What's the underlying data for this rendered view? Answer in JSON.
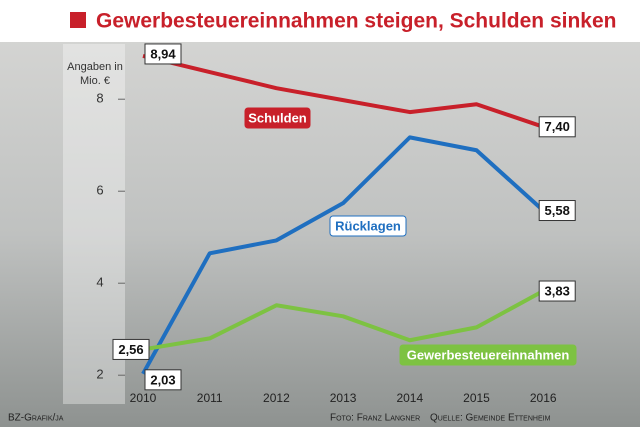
{
  "chart_data": {
    "type": "line",
    "title": "Gewerbesteuereinnahmen steigen, Schulden sinken",
    "ylabel": "Angaben in Mio. €",
    "categories": [
      "2010",
      "2011",
      "2012",
      "2013",
      "2014",
      "2015",
      "2016"
    ],
    "series": [
      {
        "name": "Schulden",
        "color": "#c8202a",
        "values": [
          8.94,
          8.59,
          8.24,
          7.98,
          7.72,
          7.89,
          7.4
        ],
        "value_labels": [
          "8,94",
          null,
          null,
          null,
          null,
          null,
          "7,40"
        ]
      },
      {
        "name": "Rücklagen",
        "color": "#1f6fc0",
        "values": [
          2.03,
          4.65,
          4.93,
          5.74,
          7.17,
          6.89,
          5.58
        ],
        "value_labels": [
          "2,03",
          null,
          null,
          null,
          null,
          null,
          "5,58"
        ]
      },
      {
        "name": "Gewerbesteuereinnahmen",
        "color": "#7dc242",
        "values": [
          2.56,
          2.8,
          3.52,
          3.28,
          2.76,
          3.04,
          3.83
        ],
        "value_labels": [
          "2,56",
          null,
          null,
          null,
          null,
          null,
          "3,83"
        ]
      }
    ],
    "ylim": [
      1.6,
      9.2
    ],
    "yticks": [
      2,
      4,
      6,
      8
    ],
    "credit": "BZ-Grafik/ja",
    "photo_credit": "Foto: Franz Langner",
    "source": "Quelle: Gemeinde Ettenheim"
  }
}
